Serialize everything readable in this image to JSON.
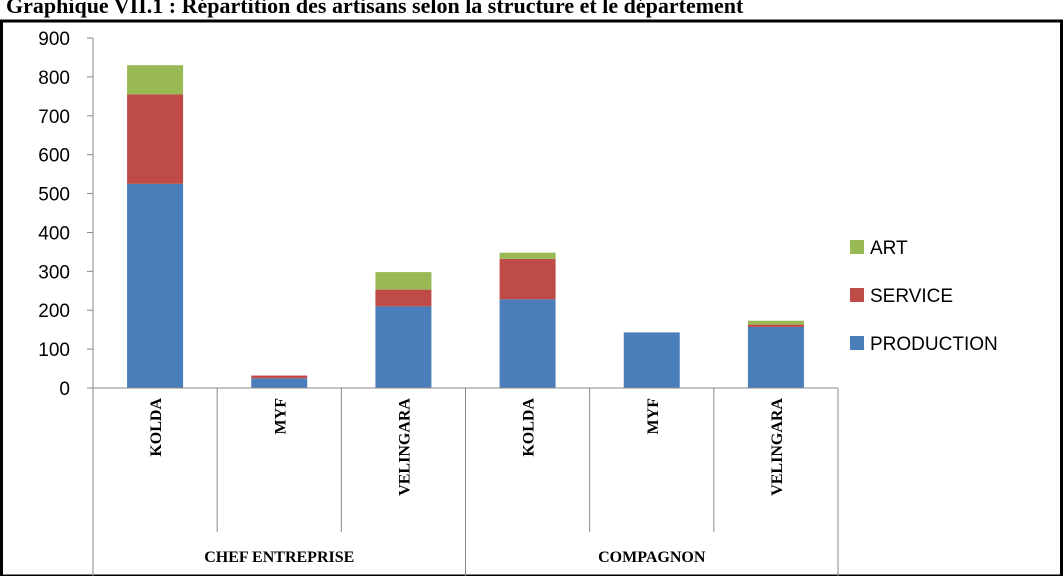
{
  "title": "Graphique VII.1 : Répartition des artisans selon la structure et le département",
  "chart_data": {
    "type": "bar",
    "stacked": true,
    "groups": [
      {
        "label": "CHEF ENTREPRISE",
        "categories": [
          "KOLDA",
          "MYF",
          "VELINGARA"
        ]
      },
      {
        "label": "COMPAGNON",
        "categories": [
          "KOLDA",
          "MYF",
          "VELINGARA"
        ]
      }
    ],
    "series": [
      {
        "name": "PRODUCTION",
        "color": "#4a7ebb",
        "values": [
          525,
          25,
          210,
          228,
          143,
          157
        ]
      },
      {
        "name": "SERVICE",
        "color": "#be4b48",
        "values": [
          230,
          7,
          43,
          104,
          0,
          6
        ]
      },
      {
        "name": "ART",
        "color": "#98b954",
        "values": [
          75,
          0,
          45,
          16,
          0,
          10
        ]
      }
    ],
    "legend_order": [
      "ART",
      "SERVICE",
      "PRODUCTION"
    ],
    "ylim": [
      0,
      900
    ],
    "yticks": [
      0,
      100,
      200,
      300,
      400,
      500,
      600,
      700,
      800,
      900
    ],
    "grid": false,
    "legend_position": "right"
  }
}
